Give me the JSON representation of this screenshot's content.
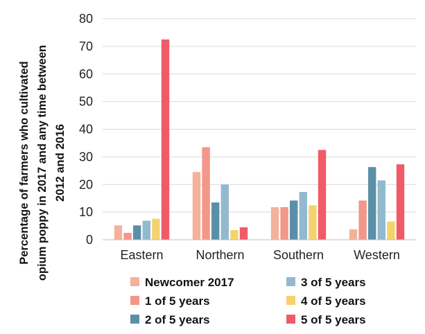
{
  "chart_data": {
    "type": "bar",
    "title": "",
    "xlabel": "",
    "ylabel": "Percentage of farmers who cultivated opium poppy in 2017 and any time between 2012 and 2016",
    "ylabel_lines": [
      "Percentage of farmers who cultivated",
      "opium poppy in 2017 and any time between",
      "2012 and 2016"
    ],
    "ylim": [
      0,
      80
    ],
    "yticks": [
      0,
      10,
      20,
      30,
      40,
      50,
      60,
      70,
      80
    ],
    "grid": true,
    "legend_position": "bottom",
    "categories": [
      "Eastern",
      "Northern",
      "Southern",
      "Western"
    ],
    "series": [
      {
        "name": "Newcomer 2017",
        "color": "#F4B29A",
        "values": [
          5.2,
          24.5,
          11.8,
          3.8
        ]
      },
      {
        "name": "1 of 5 years",
        "color": "#F2978A",
        "values": [
          2.5,
          33.5,
          11.8,
          14.2
        ]
      },
      {
        "name": "2 of 5 years",
        "color": "#5B8FA8",
        "values": [
          5.2,
          13.5,
          14.2,
          26.3
        ]
      },
      {
        "name": "3 of 5 years",
        "color": "#93B9CF",
        "values": [
          6.9,
          20.0,
          17.3,
          21.5
        ]
      },
      {
        "name": "4 of 5 years",
        "color": "#F4D36F",
        "values": [
          7.6,
          3.5,
          12.5,
          6.6
        ]
      },
      {
        "name": "5 of 5 years",
        "color": "#EF5B67",
        "values": [
          72.5,
          4.5,
          32.5,
          27.3
        ]
      }
    ]
  }
}
